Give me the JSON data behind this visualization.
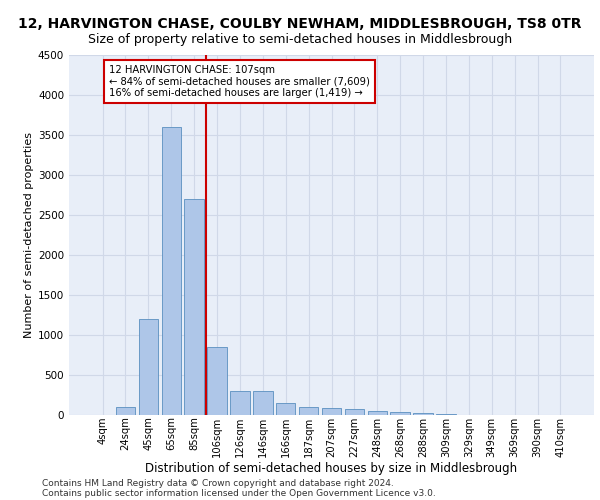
{
  "title1": "12, HARVINGTON CHASE, COULBY NEWHAM, MIDDLESBROUGH, TS8 0TR",
  "title2": "Size of property relative to semi-detached houses in Middlesbrough",
  "xlabel": "Distribution of semi-detached houses by size in Middlesbrough",
  "ylabel": "Number of semi-detached properties",
  "categories": [
    "4sqm",
    "24sqm",
    "45sqm",
    "65sqm",
    "85sqm",
    "106sqm",
    "126sqm",
    "146sqm",
    "166sqm",
    "187sqm",
    "207sqm",
    "227sqm",
    "248sqm",
    "268sqm",
    "288sqm",
    "309sqm",
    "329sqm",
    "349sqm",
    "369sqm",
    "390sqm",
    "410sqm"
  ],
  "values": [
    0,
    100,
    1200,
    3600,
    2700,
    850,
    300,
    300,
    150,
    100,
    90,
    70,
    50,
    40,
    30,
    10,
    5,
    3,
    2,
    1,
    0
  ],
  "bar_color": "#aec6e8",
  "bar_edge_color": "#5a8fc0",
  "vline_color": "#cc0000",
  "annotation_text": "12 HARVINGTON CHASE: 107sqm\n← 84% of semi-detached houses are smaller (7,609)\n16% of semi-detached houses are larger (1,419) →",
  "annotation_box_color": "#cc0000",
  "ylim": [
    0,
    4500
  ],
  "yticks": [
    0,
    500,
    1000,
    1500,
    2000,
    2500,
    3000,
    3500,
    4000,
    4500
  ],
  "grid_color": "#d0d8e8",
  "background_color": "#e8eef8",
  "footer1": "Contains HM Land Registry data © Crown copyright and database right 2024.",
  "footer2": "Contains public sector information licensed under the Open Government Licence v3.0.",
  "title1_fontsize": 10,
  "title2_fontsize": 9,
  "xlabel_fontsize": 8.5,
  "ylabel_fontsize": 8,
  "footer_fontsize": 6.5
}
